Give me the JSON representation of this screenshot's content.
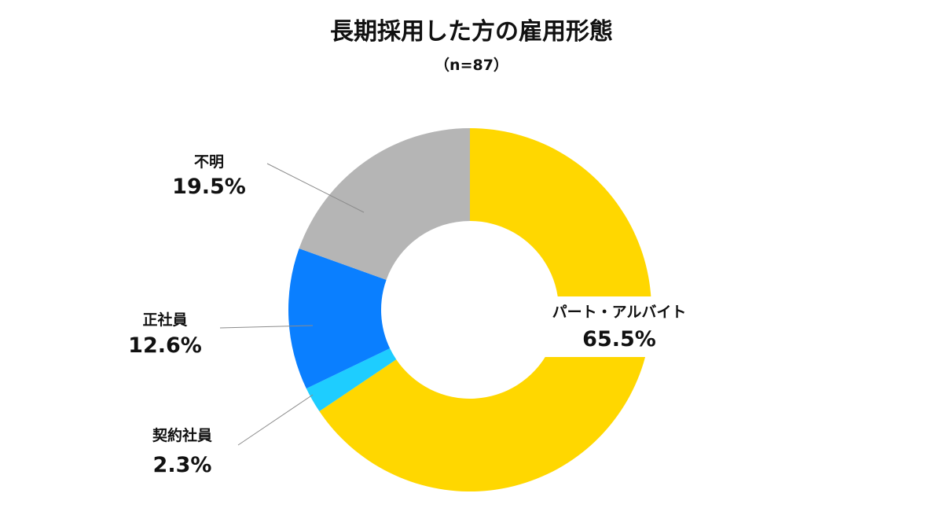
{
  "chart_data": {
    "type": "pie",
    "title": "長期採用した方の雇用形態",
    "subtitle": "（n=87）",
    "categories": [
      "パート・アルバイト",
      "契約社員",
      "正社員",
      "不明"
    ],
    "values": [
      65.5,
      2.3,
      12.6,
      19.5
    ],
    "value_labels": [
      "65.5%",
      "2.3%",
      "12.6%",
      "19.5%"
    ],
    "colors": [
      "#FFD700",
      "#1ECDFF",
      "#0A7FFF",
      "#B5B5B5"
    ],
    "unit": "%",
    "donut": true,
    "legend": "none"
  }
}
